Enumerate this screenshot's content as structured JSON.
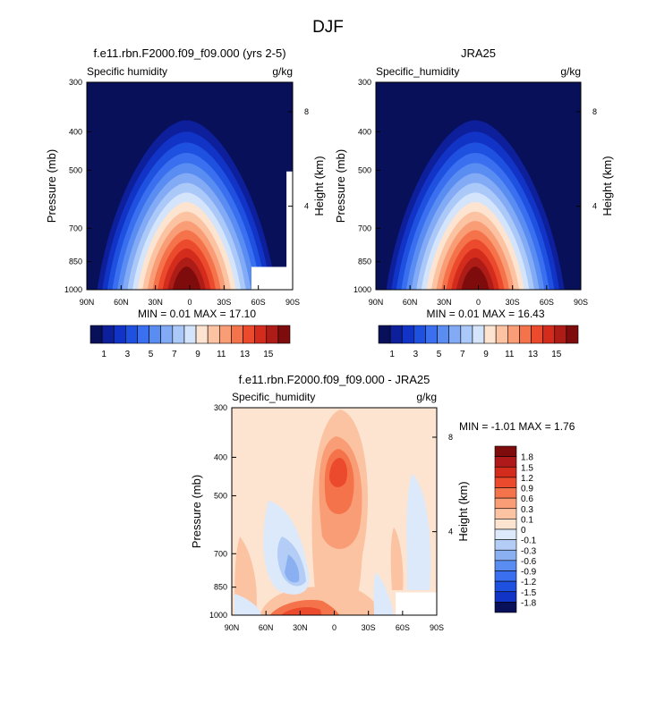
{
  "figure": {
    "season": "DJF"
  },
  "chart_data": [
    {
      "type": "heatmap",
      "title": "f.e11.rbn.F2000.f09_f09.000 (yrs 2-5)",
      "variable_label": "Specific humidity",
      "units": "g/kg",
      "ylabel": "Pressure (mb)",
      "right_label": "Height (km)",
      "x_ticks": [
        "90N",
        "60N",
        "30N",
        "0",
        "30S",
        "60S",
        "90S"
      ],
      "y_ticks": [
        "300",
        "400",
        "500",
        "700",
        "850",
        "1000"
      ],
      "height_ticks": [
        "8",
        "4"
      ],
      "stats": {
        "min_label": "MIN =",
        "min_value": "0.01",
        "max_label": "MAX =",
        "max_value": "17.10"
      },
      "colorbar": {
        "labels": [
          "1",
          "3",
          "5",
          "7",
          "9",
          "11",
          "13",
          "15"
        ],
        "levels": [
          1,
          2,
          3,
          4,
          5,
          6,
          7,
          8,
          9,
          10,
          11,
          12,
          13,
          14,
          15
        ]
      },
      "peak_value": 17.1
    },
    {
      "type": "heatmap",
      "title": "JRA25",
      "variable_label": "Specific_humidity",
      "units": "g/kg",
      "ylabel": "Pressure (mb)",
      "right_label": "Height (km)",
      "x_ticks": [
        "90N",
        "60N",
        "30N",
        "0",
        "30S",
        "60S",
        "90S"
      ],
      "y_ticks": [
        "300",
        "400",
        "500",
        "700",
        "850",
        "1000"
      ],
      "height_ticks": [
        "8",
        "4"
      ],
      "stats": {
        "min_label": "MIN =",
        "min_value": "0.01",
        "max_label": "MAX =",
        "max_value": "16.43"
      },
      "colorbar": {
        "labels": [
          "1",
          "3",
          "5",
          "7",
          "9",
          "11",
          "13",
          "15"
        ],
        "levels": [
          1,
          2,
          3,
          4,
          5,
          6,
          7,
          8,
          9,
          10,
          11,
          12,
          13,
          14,
          15
        ]
      },
      "peak_value": 16.43
    },
    {
      "type": "heatmap",
      "title": "f.e11.rbn.F2000.f09_f09.000 - JRA25",
      "variable_label": "Specific_humidity",
      "units": "g/kg",
      "ylabel": "Pressure (mb)",
      "right_label": "Height (km)",
      "x_ticks": [
        "90N",
        "60N",
        "30N",
        "0",
        "30S",
        "60S",
        "90S"
      ],
      "y_ticks": [
        "300",
        "400",
        "500",
        "700",
        "850",
        "1000"
      ],
      "height_ticks": [
        "8",
        "4"
      ],
      "stats": {
        "min_label": "MIN =",
        "min_value": "-1.01",
        "max_label": "MAX =",
        "max_value": "1.76"
      },
      "colorbar": {
        "labels": [
          "1.8",
          "1.5",
          "1.2",
          "0.9",
          "0.6",
          "0.3",
          "0.1",
          "0",
          "-0.1",
          "-0.3",
          "-0.6",
          "-0.9",
          "-1.2",
          "-1.5",
          "-1.8"
        ]
      }
    }
  ],
  "palettes": {
    "full": [
      "#08105a",
      "#0d1f9a",
      "#1133c6",
      "#1f51e0",
      "#3a70f0",
      "#5a8df2",
      "#82aaf5",
      "#aac8f8",
      "#d4e4fb",
      "#fde4d0",
      "#fcc3a2",
      "#f99d76",
      "#f5734a",
      "#eb4a2c",
      "#d42c1c",
      "#ad1c16",
      "#7e0c0c"
    ],
    "diff": [
      "#7e0c0c",
      "#b0191a",
      "#d42c1c",
      "#eb4a2c",
      "#f5734a",
      "#f99d76",
      "#fcc3a2",
      "#fde4d0",
      "#dce9fb",
      "#b4cdf6",
      "#8ab0f2",
      "#5a8df2",
      "#3a70f0",
      "#1f51e0",
      "#1133c6",
      "#08105a"
    ]
  }
}
